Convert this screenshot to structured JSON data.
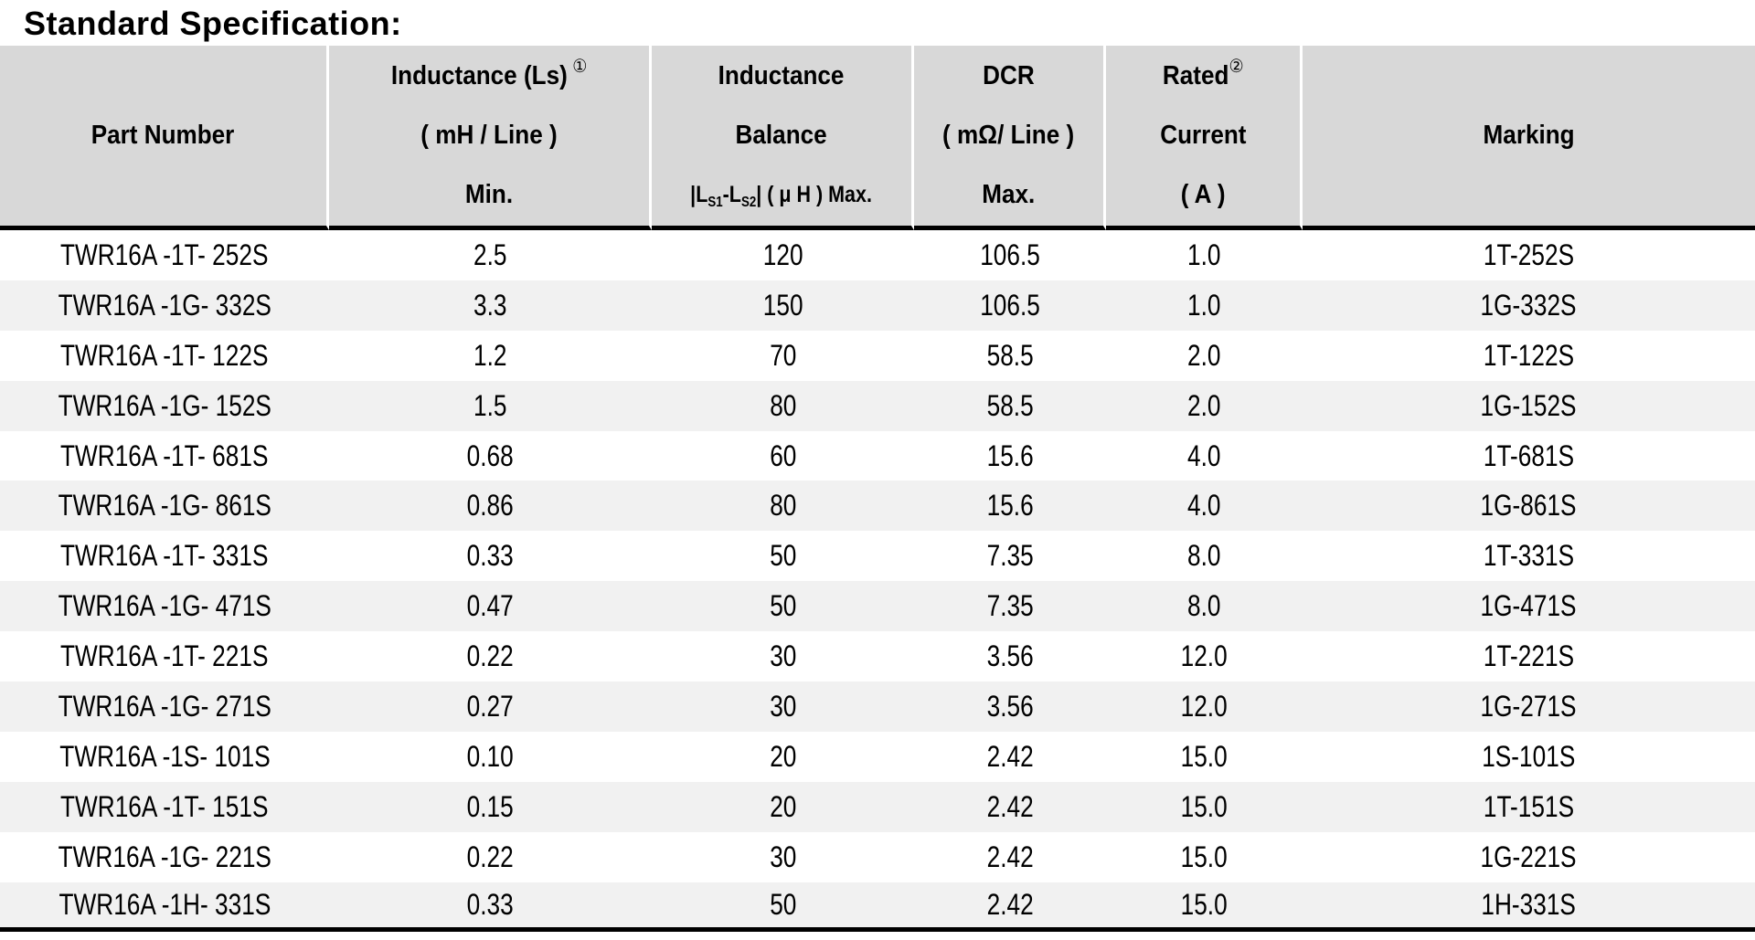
{
  "title": "Standard Specification:",
  "colors": {
    "header_bg": "#d8d8d8",
    "row_bg": "#ffffff",
    "row_alt_bg": "#f1f1f1",
    "text": "#000000",
    "rule": "#000000",
    "header_divider": "#ffffff"
  },
  "table": {
    "header": {
      "part_number": "Part Number",
      "inductance": {
        "line1": "Inductance (Ls)",
        "footnote": "①",
        "line2": "( mH / Line )",
        "line3": "Min."
      },
      "balance": {
        "line1": "Inductance",
        "line2": "Balance",
        "line3_p1": "|L",
        "line3_sub1": "S1",
        "line3_p2": "-L",
        "line3_sub2": "S2",
        "line3_p3": "| ( μ H ) Max."
      },
      "dcr": {
        "line1": "DCR",
        "line2": "( mΩ/ Line )",
        "line3": "Max."
      },
      "rated": {
        "line1": "Rated",
        "footnote": "②",
        "line2": "Current",
        "line3": "( A )"
      },
      "marking": "Marking"
    },
    "col_ids": [
      "part-number-cell",
      "inductance-min-cell",
      "inductance-balance-cell",
      "dcr-max-cell",
      "rated-current-cell",
      "marking-cell"
    ],
    "rows": [
      [
        "TWR16A -1T- 252S",
        "2.5",
        "120",
        "106.5",
        "1.0",
        "1T-252S"
      ],
      [
        "TWR16A -1G- 332S",
        "3.3",
        "150",
        "106.5",
        "1.0",
        "1G-332S"
      ],
      [
        "TWR16A -1T- 122S",
        "1.2",
        "70",
        "58.5",
        "2.0",
        "1T-122S"
      ],
      [
        "TWR16A -1G- 152S",
        "1.5",
        "80",
        "58.5",
        "2.0",
        "1G-152S"
      ],
      [
        "TWR16A -1T- 681S",
        "0.68",
        "60",
        "15.6",
        "4.0",
        "1T-681S"
      ],
      [
        "TWR16A -1G- 861S",
        "0.86",
        "80",
        "15.6",
        "4.0",
        "1G-861S"
      ],
      [
        "TWR16A -1T- 331S",
        "0.33",
        "50",
        "7.35",
        "8.0",
        "1T-331S"
      ],
      [
        "TWR16A -1G- 471S",
        "0.47",
        "50",
        "7.35",
        "8.0",
        "1G-471S"
      ],
      [
        "TWR16A -1T- 221S",
        "0.22",
        "30",
        "3.56",
        "12.0",
        "1T-221S"
      ],
      [
        "TWR16A -1G- 271S",
        "0.27",
        "30",
        "3.56",
        "12.0",
        "1G-271S"
      ],
      [
        "TWR16A -1S- 101S",
        "0.10",
        "20",
        "2.42",
        "15.0",
        "1S-101S"
      ],
      [
        "TWR16A -1T- 151S",
        "0.15",
        "20",
        "2.42",
        "15.0",
        "1T-151S"
      ],
      [
        "TWR16A -1G- 221S",
        "0.22",
        "30",
        "2.42",
        "15.0",
        "1G-221S"
      ],
      [
        "TWR16A -1H- 331S",
        "0.33",
        "50",
        "2.42",
        "15.0",
        "1H-331S"
      ]
    ]
  }
}
